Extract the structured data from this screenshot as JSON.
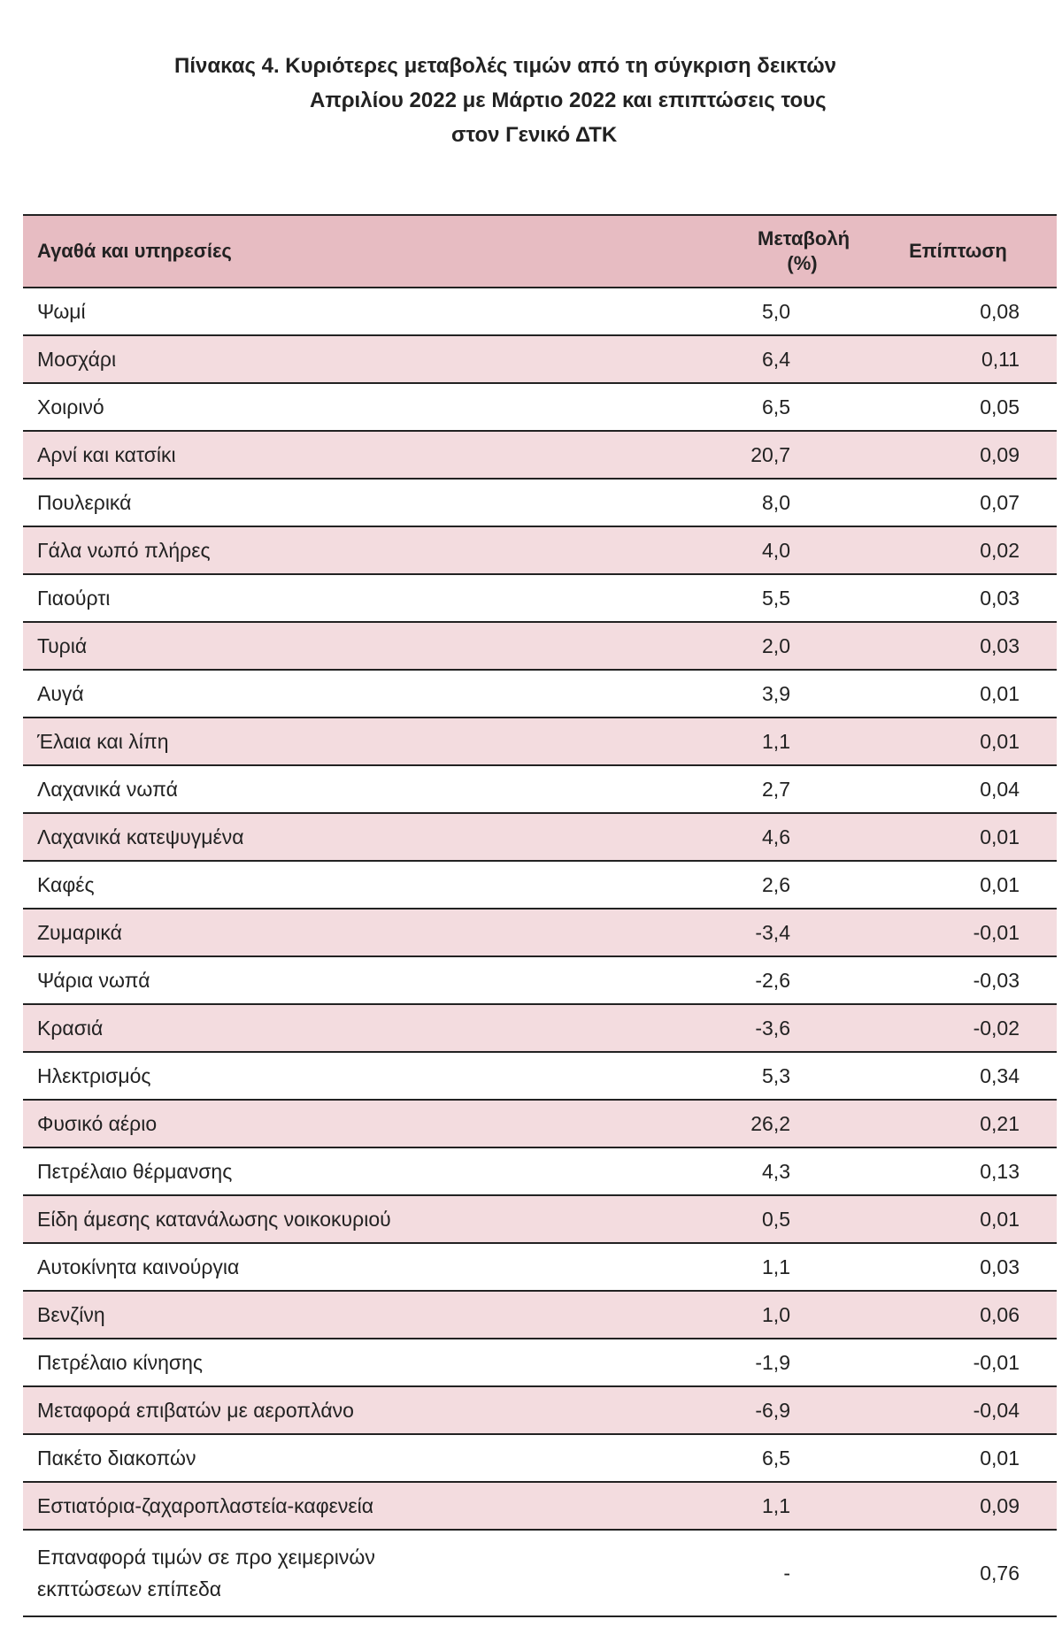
{
  "title": {
    "line1": "Πίνακας  4. Κυριότερες μεταβολές τιμών από τη σύγκριση δεικτών",
    "line2": "Απριλίου 2022 με Μάρτιο 2022 και επιπτώσεις τους",
    "line3": "στον Γενικό ΔΤΚ"
  },
  "table": {
    "headers": {
      "item": "Αγαθά και υπηρεσίες",
      "change_line1": "Μεταβολή",
      "change_line2": "(%)",
      "impact": "Επίπτωση"
    },
    "rows": [
      {
        "item": "Ψωμί",
        "change": "5,0",
        "impact": "0,08"
      },
      {
        "item": "Μοσχάρι",
        "change": "6,4",
        "impact": "0,11"
      },
      {
        "item": "Χοιρινό",
        "change": "6,5",
        "impact": "0,05"
      },
      {
        "item": "Αρνί και κατσίκι",
        "change": "20,7",
        "impact": "0,09"
      },
      {
        "item": "Πουλερικά",
        "change": "8,0",
        "impact": "0,07"
      },
      {
        "item": "Γάλα νωπό πλήρες",
        "change": "4,0",
        "impact": "0,02"
      },
      {
        "item": "Γιαούρτι",
        "change": "5,5",
        "impact": "0,03"
      },
      {
        "item": "Τυριά",
        "change": "2,0",
        "impact": "0,03"
      },
      {
        "item": "Αυγά",
        "change": "3,9",
        "impact": "0,01"
      },
      {
        "item": "Έλαια και λίπη",
        "change": "1,1",
        "impact": "0,01"
      },
      {
        "item": "Λαχανικά νωπά",
        "change": "2,7",
        "impact": "0,04"
      },
      {
        "item": "Λαχανικά κατεψυγμένα",
        "change": "4,6",
        "impact": "0,01"
      },
      {
        "item": "Καφές",
        "change": "2,6",
        "impact": "0,01"
      },
      {
        "item": "Ζυμαρικά",
        "change": "-3,4",
        "impact": "-0,01"
      },
      {
        "item": "Ψάρια νωπά",
        "change": "-2,6",
        "impact": "-0,03"
      },
      {
        "item": "Κρασιά",
        "change": "-3,6",
        "impact": "-0,02"
      },
      {
        "item": "Ηλεκτρισμός",
        "change": "5,3",
        "impact": "0,34"
      },
      {
        "item": "Φυσικό αέριο",
        "change": "26,2",
        "impact": "0,21"
      },
      {
        "item": "Πετρέλαιο θέρμανσης",
        "change": "4,3",
        "impact": "0,13"
      },
      {
        "item": "Είδη άμεσης κατανάλωσης νοικοκυριού",
        "change": "0,5",
        "impact": "0,01"
      },
      {
        "item": "Αυτοκίνητα καινούργια",
        "change": "1,1",
        "impact": "0,03"
      },
      {
        "item": "Βενζίνη",
        "change": "1,0",
        "impact": "0,06"
      },
      {
        "item": "Πετρέλαιο κίνησης",
        "change": "-1,9",
        "impact": "-0,01"
      },
      {
        "item": "Μεταφορά επιβατών με αεροπλάνο",
        "change": "-6,9",
        "impact": "-0,04"
      },
      {
        "item": "Πακέτο διακοπών",
        "change": "6,5",
        "impact": "0,01"
      },
      {
        "item": "Εστιατόρια-ζαχαροπλαστεία-καφενεία",
        "change": "1,1",
        "impact": "0,09"
      },
      {
        "item": "Επαναφορά τιμών σε προ χειμερινών εκπτώσεων επίπεδα",
        "item_line1": "Επαναφορά τιμών σε προ χειμερινών",
        "item_line2": "εκπτώσεων επίπεδα",
        "change": "-",
        "impact": "0,76"
      }
    ]
  }
}
